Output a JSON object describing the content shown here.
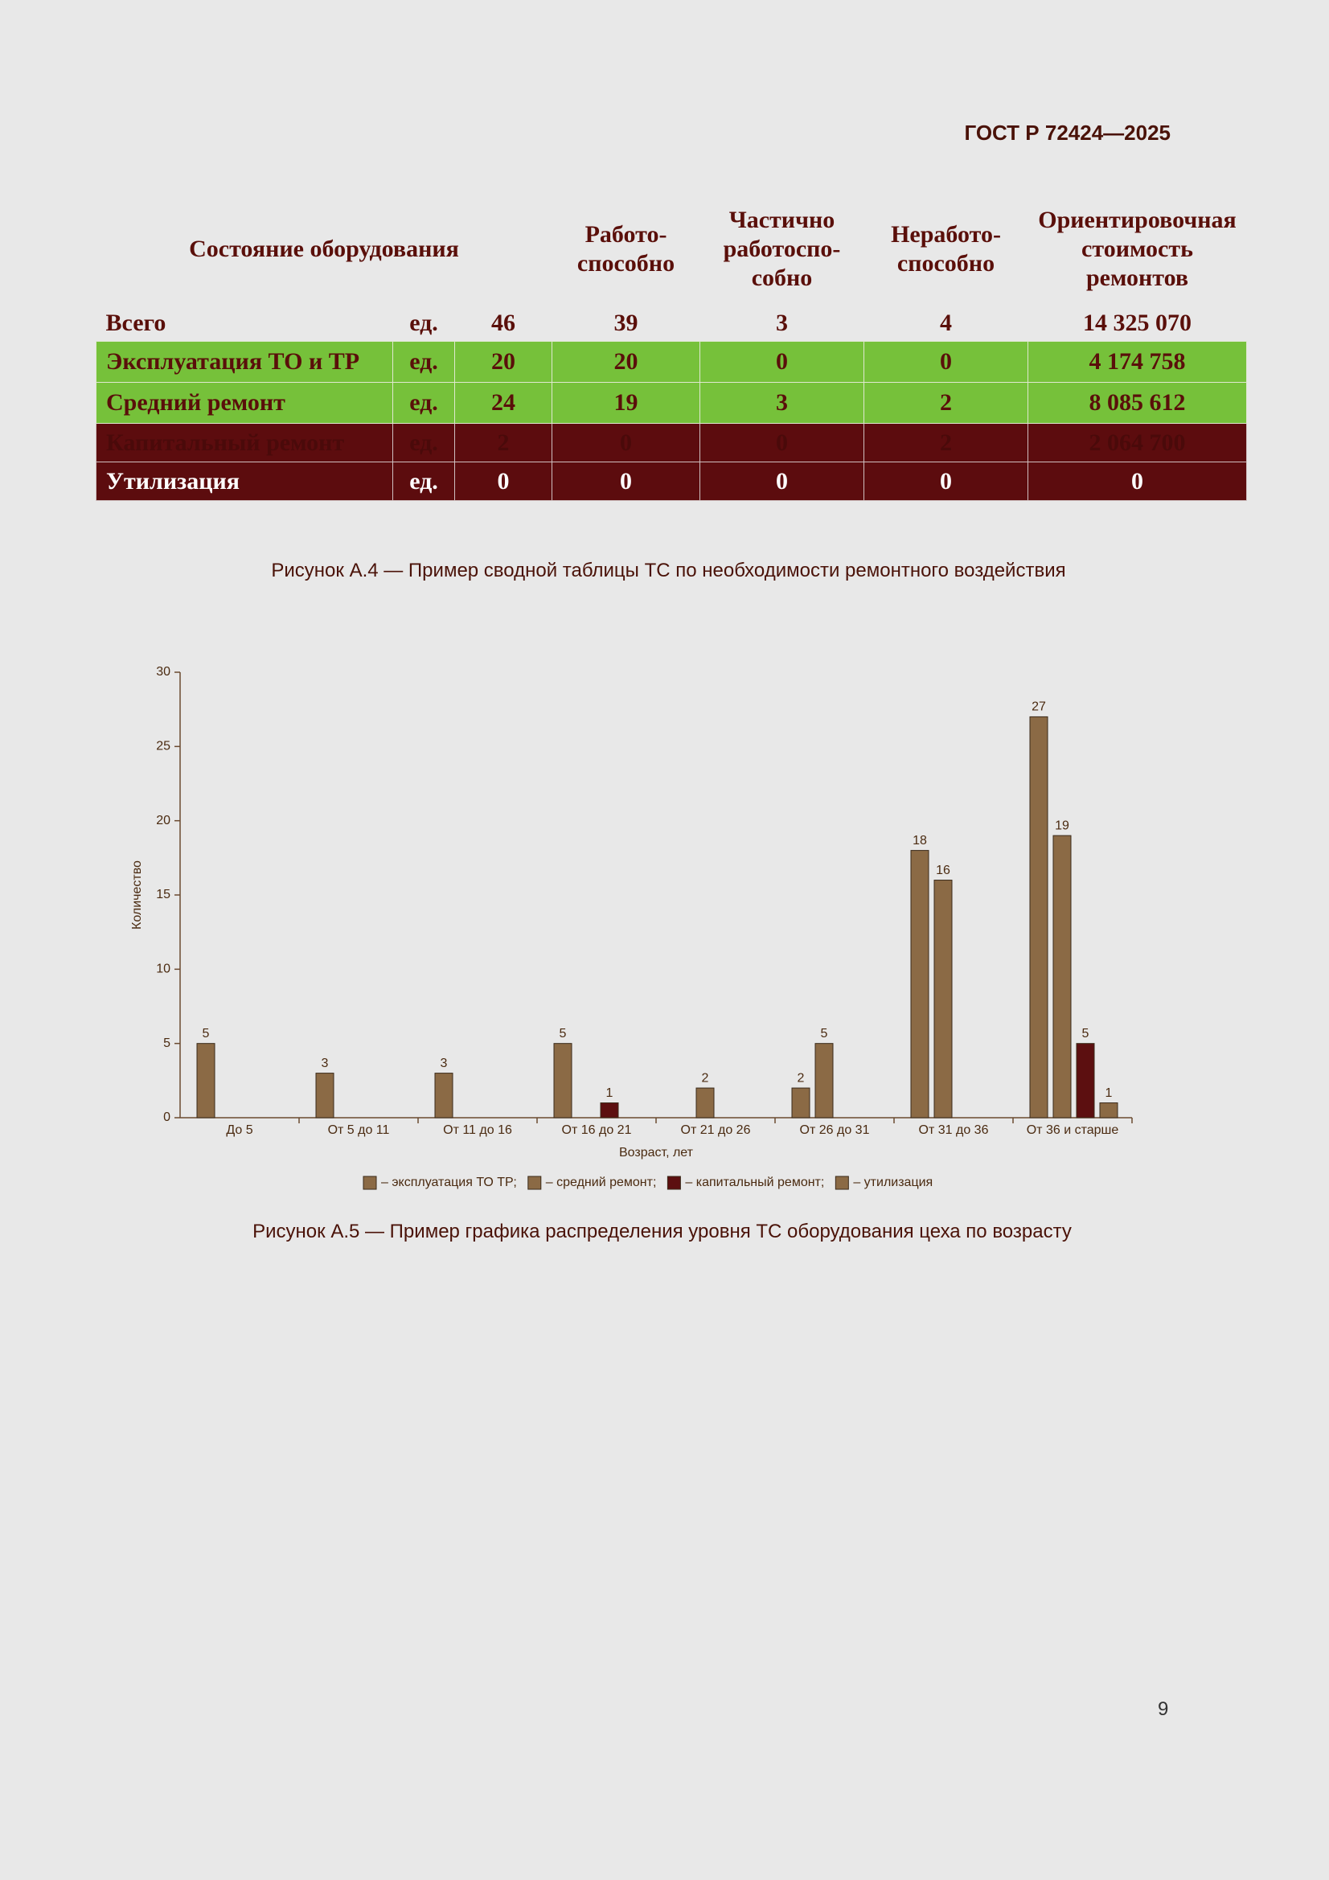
{
  "header": {
    "title": "ГОСТ Р 72424—2025"
  },
  "table": {
    "columns": [
      "Состояние оборудования",
      [
        "Работо-",
        "способно"
      ],
      [
        "Частично",
        "работоспо-",
        "собно"
      ],
      [
        "Неработо-",
        "способно"
      ],
      [
        "Ориентировочная",
        "стоимость",
        "ремонтов"
      ]
    ],
    "rows": [
      [
        "Всего",
        "ед.",
        46,
        39,
        3,
        4,
        "14 325 070"
      ],
      [
        "Эксплуатация ТО и ТР",
        "ед.",
        20,
        20,
        0,
        0,
        "4 174 758"
      ],
      [
        "Средний ремонт",
        "ед.",
        24,
        19,
        3,
        2,
        "8 085 612"
      ],
      [
        "Капитальный ремонт",
        "ед.",
        2,
        0,
        0,
        2,
        "2 064 700"
      ],
      [
        "Утилизация",
        "ед.",
        0,
        0,
        0,
        0,
        "0"
      ]
    ]
  },
  "figure_a4": {
    "caption": "Рисунок А.4 — Пример сводной таблицы ТС по необходимости ремонтного воздействия"
  },
  "chart_data": {
    "type": "bar",
    "x_label": "Возраст, лет",
    "y_label": "Количество",
    "categories": [
      "До 5",
      "От 5 до 11",
      "От 11 до 16",
      "От 16 до 21",
      "От 21 до 26",
      "От 26 до 31",
      "От 31 до 36",
      "От 36 и старше"
    ],
    "series": [
      {
        "name": "– эксплуатация ТО ТР;",
        "color": "#8b6a45",
        "values": [
          5,
          3,
          3,
          5,
          0,
          2,
          18,
          27
        ]
      },
      {
        "name": "– средний ремонт;",
        "color": "#8b6a45",
        "values": [
          0,
          0,
          0,
          0,
          2,
          5,
          16,
          19
        ]
      },
      {
        "name": "– капитальный ремонт;",
        "color": "#5c0f10",
        "values": [
          0,
          0,
          0,
          1,
          0,
          0,
          0,
          5
        ]
      },
      {
        "name": "– утилизация",
        "color": "#8b6a45",
        "values": [
          0,
          0,
          0,
          0,
          0,
          0,
          0,
          1
        ]
      }
    ],
    "ylim": [
      0,
      30
    ],
    "yticks": [
      0,
      5,
      10,
      15,
      20,
      25,
      30
    ]
  },
  "figure_a5": {
    "caption": "Рисунок А.5 — Пример графика распределения уровня ТС оборудования цеха по возрасту"
  },
  "page_number": "9"
}
